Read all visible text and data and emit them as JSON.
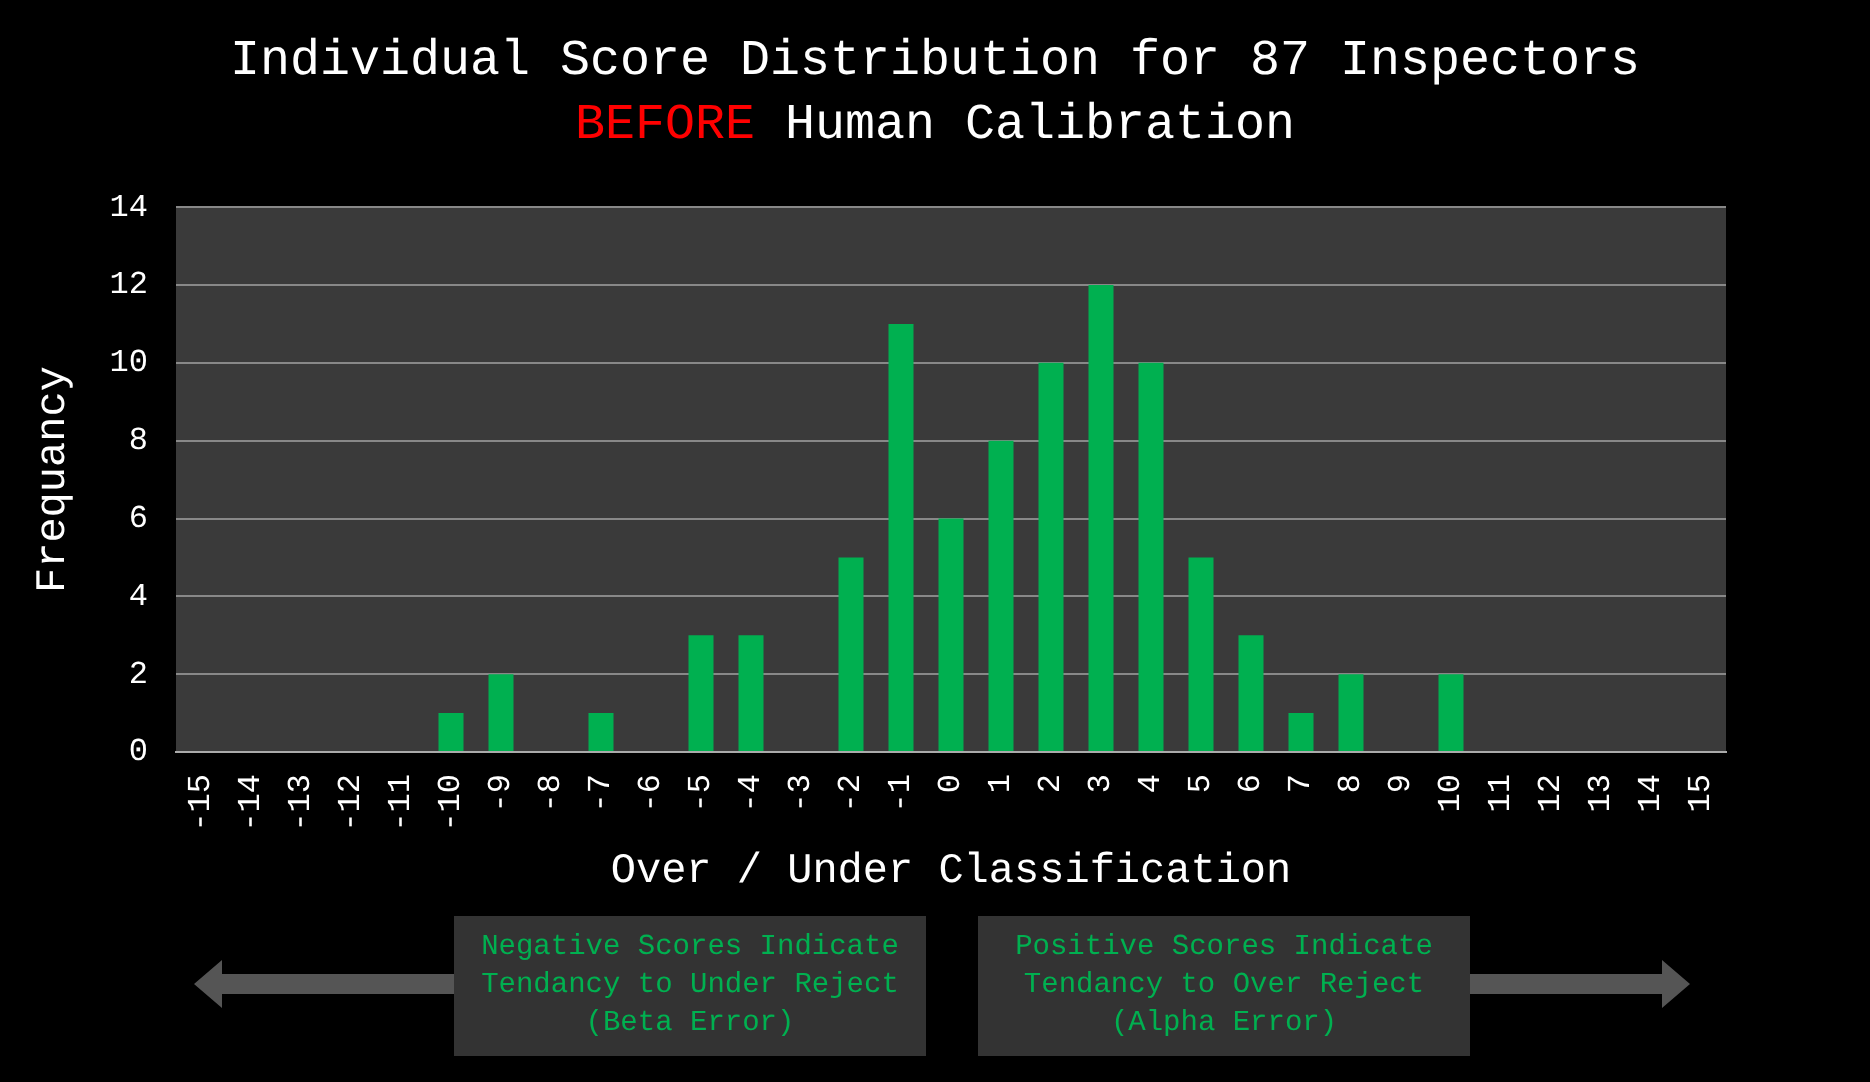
{
  "chart_data": {
    "type": "bar",
    "title": "Individual Score Distribution for 87 Inspectors",
    "subtitle": "BEFORE Human Calibration",
    "xlabel": "Over / Under Classification",
    "ylabel": "Frequancy",
    "categories": [
      "-15",
      "-14",
      "-13",
      "-12",
      "-11",
      "-10",
      "-9",
      "-8",
      "-7",
      "-6",
      "-5",
      "-4",
      "-3",
      "-2",
      "-1",
      "0",
      "1",
      "2",
      "3",
      "4",
      "5",
      "6",
      "7",
      "8",
      "9",
      "10",
      "11",
      "12",
      "13",
      "14",
      "15"
    ],
    "values": [
      0,
      0,
      0,
      0,
      0,
      1,
      2,
      0,
      1,
      0,
      3,
      3,
      0,
      5,
      11,
      6,
      8,
      10,
      12,
      10,
      5,
      3,
      1,
      2,
      0,
      2,
      0,
      0,
      0,
      0,
      0
    ],
    "color": "#00b050",
    "ylim": [
      0,
      14
    ],
    "yticks": [
      0,
      2,
      4,
      6,
      8,
      10,
      12,
      14
    ],
    "grid": "y",
    "legend": false,
    "annotations": [
      "Negative Scores Indicate\nTendancy to Under Reject\n(Beta Error)",
      "Positive Scores Indicate\nTendancy to Over Reject\n(Alpha Error)"
    ]
  }
}
